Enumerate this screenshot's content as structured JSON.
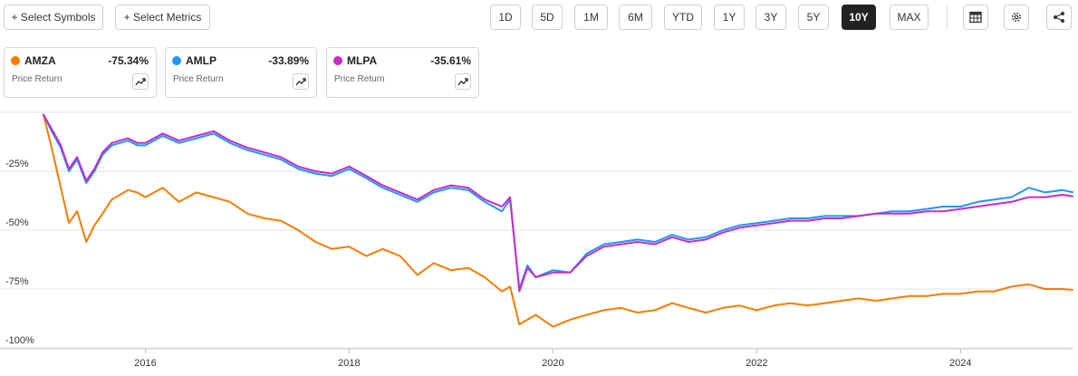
{
  "toolbar": {
    "select_symbols": "+ Select Symbols",
    "select_metrics": "+ Select Metrics",
    "ranges": [
      "1D",
      "5D",
      "1M",
      "6M",
      "YTD",
      "1Y",
      "3Y",
      "5Y",
      "10Y",
      "MAX"
    ],
    "active_range": "10Y",
    "icons": [
      "table-icon",
      "gear-icon",
      "share-icon"
    ]
  },
  "cards": [
    {
      "symbol": "AMZA",
      "change": "-75.34%",
      "metric": "Price Return",
      "color": "#f57c00"
    },
    {
      "symbol": "AMLP",
      "change": "-33.89%",
      "metric": "Price Return",
      "color": "#2196f3"
    },
    {
      "symbol": "MLPA",
      "change": "-35.61%",
      "metric": "Price Return",
      "color": "#c62bc6"
    }
  ],
  "chart_data": {
    "type": "line",
    "ylim": [
      -100,
      0
    ],
    "xlim": [
      2015.0,
      2025.1
    ],
    "y_ticks": [
      -25,
      -50,
      -75,
      -100
    ],
    "y_tick_labels": [
      "-25%",
      "-50%",
      "-75%",
      "-100%"
    ],
    "x_ticks": [
      2016,
      2018,
      2020,
      2022,
      2024
    ],
    "x_tick_labels": [
      "2016",
      "2018",
      "2020",
      "2022",
      "2024"
    ],
    "grid": true,
    "series": [
      {
        "name": "AMZA",
        "color": "#f57c00",
        "x": [
          2015.0,
          2015.08,
          2015.17,
          2015.25,
          2015.33,
          2015.42,
          2015.5,
          2015.58,
          2015.67,
          2015.75,
          2015.83,
          2015.92,
          2016.0,
          2016.17,
          2016.33,
          2016.5,
          2016.67,
          2016.83,
          2017.0,
          2017.17,
          2017.33,
          2017.5,
          2017.67,
          2017.83,
          2018.0,
          2018.17,
          2018.33,
          2018.5,
          2018.67,
          2018.83,
          2019.0,
          2019.17,
          2019.33,
          2019.5,
          2019.58,
          2019.67,
          2019.75,
          2019.83,
          2020.0,
          2020.17,
          2020.33,
          2020.5,
          2020.67,
          2020.83,
          2021.0,
          2021.17,
          2021.33,
          2021.5,
          2021.67,
          2021.83,
          2022.0,
          2022.17,
          2022.33,
          2022.5,
          2022.67,
          2022.83,
          2023.0,
          2023.17,
          2023.33,
          2023.5,
          2023.67,
          2023.83,
          2024.0,
          2024.17,
          2024.33,
          2024.5,
          2024.67,
          2024.83,
          2025.0,
          2025.1
        ],
        "y": [
          -1,
          -15,
          -32,
          -47,
          -42,
          -55,
          -48,
          -43,
          -37,
          -35,
          -33,
          -34,
          -36,
          -32,
          -38,
          -34,
          -36,
          -38,
          -43,
          -45,
          -46,
          -50,
          -55,
          -58,
          -57,
          -61,
          -58,
          -61,
          -69,
          -64,
          -67,
          -66,
          -70,
          -76,
          -74,
          -90,
          -88,
          -86,
          -91,
          -88,
          -86,
          -84,
          -83,
          -85,
          -84,
          -81,
          -83,
          -85,
          -83,
          -82,
          -84,
          -82,
          -81,
          -82,
          -81,
          -80,
          -79,
          -80,
          -79,
          -78,
          -78,
          -77,
          -77,
          -76,
          -76,
          -74,
          -73,
          -75,
          -75,
          -75.34
        ]
      },
      {
        "name": "AMLP",
        "color": "#2196f3",
        "x": [
          2015.0,
          2015.08,
          2015.17,
          2015.25,
          2015.33,
          2015.42,
          2015.5,
          2015.58,
          2015.67,
          2015.75,
          2015.83,
          2015.92,
          2016.0,
          2016.17,
          2016.33,
          2016.5,
          2016.67,
          2016.83,
          2017.0,
          2017.17,
          2017.33,
          2017.5,
          2017.67,
          2017.83,
          2018.0,
          2018.17,
          2018.33,
          2018.5,
          2018.67,
          2018.83,
          2019.0,
          2019.17,
          2019.33,
          2019.5,
          2019.58,
          2019.67,
          2019.75,
          2019.83,
          2020.0,
          2020.17,
          2020.33,
          2020.5,
          2020.67,
          2020.83,
          2021.0,
          2021.17,
          2021.33,
          2021.5,
          2021.67,
          2021.83,
          2022.0,
          2022.17,
          2022.33,
          2022.5,
          2022.67,
          2022.83,
          2023.0,
          2023.17,
          2023.33,
          2023.5,
          2023.67,
          2023.83,
          2024.0,
          2024.17,
          2024.33,
          2024.5,
          2024.67,
          2024.83,
          2025.0,
          2025.1
        ],
        "y": [
          -1,
          -8,
          -15,
          -25,
          -20,
          -30,
          -25,
          -18,
          -14,
          -13,
          -12,
          -14,
          -14,
          -10,
          -13,
          -11,
          -9,
          -13,
          -16,
          -18,
          -20,
          -24,
          -26,
          -27,
          -24,
          -28,
          -32,
          -35,
          -38,
          -34,
          -32,
          -33,
          -38,
          -42,
          -37,
          -75,
          -65,
          -70,
          -67,
          -68,
          -60,
          -56,
          -55,
          -54,
          -55,
          -52,
          -54,
          -53,
          -50,
          -48,
          -47,
          -46,
          -45,
          -45,
          -44,
          -44,
          -44,
          -43,
          -42,
          -42,
          -41,
          -40,
          -40,
          -38,
          -37,
          -36,
          -32,
          -34,
          -33,
          -33.89
        ]
      },
      {
        "name": "MLPA",
        "color": "#c62bc6",
        "x": [
          2015.0,
          2015.08,
          2015.17,
          2015.25,
          2015.33,
          2015.42,
          2015.5,
          2015.58,
          2015.67,
          2015.75,
          2015.83,
          2015.92,
          2016.0,
          2016.17,
          2016.33,
          2016.5,
          2016.67,
          2016.83,
          2017.0,
          2017.17,
          2017.33,
          2017.5,
          2017.67,
          2017.83,
          2018.0,
          2018.17,
          2018.33,
          2018.5,
          2018.67,
          2018.83,
          2019.0,
          2019.17,
          2019.33,
          2019.5,
          2019.58,
          2019.67,
          2019.75,
          2019.83,
          2020.0,
          2020.17,
          2020.33,
          2020.5,
          2020.67,
          2020.83,
          2021.0,
          2021.17,
          2021.33,
          2021.5,
          2021.67,
          2021.83,
          2022.0,
          2022.17,
          2022.33,
          2022.5,
          2022.67,
          2022.83,
          2023.0,
          2023.17,
          2023.33,
          2023.5,
          2023.67,
          2023.83,
          2024.0,
          2024.17,
          2024.33,
          2024.5,
          2024.67,
          2024.83,
          2025.0,
          2025.1
        ],
        "y": [
          -1,
          -7,
          -14,
          -24,
          -19,
          -29,
          -24,
          -17,
          -13,
          -12,
          -11,
          -13,
          -13,
          -9,
          -12,
          -10,
          -8,
          -12,
          -15,
          -17,
          -19,
          -23,
          -25,
          -26,
          -23,
          -27,
          -31,
          -34,
          -37,
          -33,
          -31,
          -32,
          -37,
          -40,
          -36,
          -76,
          -66,
          -70,
          -68,
          -68,
          -61,
          -57,
          -56,
          -55,
          -56,
          -53,
          -55,
          -54,
          -51,
          -49,
          -48,
          -47,
          -46,
          -46,
          -45,
          -45,
          -44,
          -43,
          -43,
          -43,
          -42,
          -42,
          -41,
          -40,
          -39,
          -38,
          -36,
          -36,
          -35,
          -35.61
        ]
      }
    ]
  }
}
